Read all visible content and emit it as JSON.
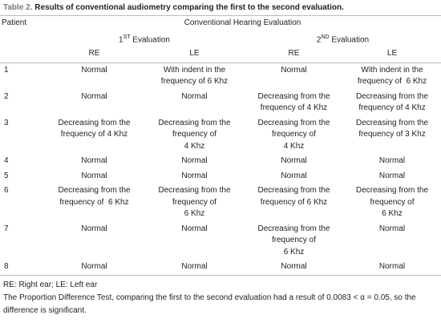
{
  "caption": {
    "label": "Table 2.",
    "title": "Results of conventional audiometry comparing the first to the second evaluation."
  },
  "table": {
    "header": {
      "patient": "Patient",
      "group": "Conventional Hearing Evaluation",
      "evaluations": [
        {
          "pre": "1",
          "sup": "ST",
          "post": " Evaluation"
        },
        {
          "pre": "2",
          "sup": "ND",
          "post": " Evaluation"
        }
      ],
      "ears": [
        "RE",
        "LE",
        "RE",
        "LE"
      ]
    },
    "rows": [
      {
        "patient": "1",
        "cells": [
          [
            "Normal"
          ],
          [
            "With indent in the",
            "frequency of 6 Khz"
          ],
          [
            "Normal"
          ],
          [
            "With indent in the",
            "frequency of  6 Khz"
          ]
        ]
      },
      {
        "patient": "2",
        "cells": [
          [
            "Normal"
          ],
          [
            "Normal"
          ],
          [
            "Decreasing from the",
            "frequency of 4 Khz"
          ],
          [
            "Decreasing from the",
            "frequency of 4 Khz"
          ]
        ]
      },
      {
        "patient": "3",
        "cells": [
          [
            "Decreasing from the",
            "frequency of 4 Khz"
          ],
          [
            "Decreasing from the",
            "frequency of",
            "4 Khz"
          ],
          [
            "Decreasing from the",
            "frequency of",
            "4 Khz"
          ],
          [
            "Decreasing from the",
            "frequency of 3 Khz"
          ]
        ]
      },
      {
        "patient": "4",
        "cells": [
          [
            "Normal"
          ],
          [
            "Normal"
          ],
          [
            "Normal"
          ],
          [
            "Normal"
          ]
        ]
      },
      {
        "patient": "5",
        "cells": [
          [
            "Normal"
          ],
          [
            "Normal"
          ],
          [
            "Normal"
          ],
          [
            "Normal"
          ]
        ]
      },
      {
        "patient": "6",
        "cells": [
          [
            "Decreasing from the",
            "frequency of  6 Khz"
          ],
          [
            "Decreasing from the",
            "frequency of",
            "6 Khz"
          ],
          [
            "Decreasing from the",
            "frequency of 6 Khz"
          ],
          [
            "Decreasing from the",
            "frequency of",
            "6 Khz"
          ]
        ]
      },
      {
        "patient": "7",
        "cells": [
          [
            "Normal"
          ],
          [
            "Normal"
          ],
          [
            "Decreasing from the",
            "frequency of",
            "6 Khz"
          ],
          [
            "Normal"
          ]
        ]
      },
      {
        "patient": "8",
        "cells": [
          [
            "Normal"
          ],
          [
            "Normal"
          ],
          [
            "Normal"
          ],
          [
            "Normal"
          ]
        ]
      }
    ]
  },
  "footnotes": [
    "RE: Right ear; LE: Left ear",
    "The Proportion Difference Test, comparing the first to the second evaluation had a result of 0.0083 < α = 0.05, so the difference is significant."
  ]
}
